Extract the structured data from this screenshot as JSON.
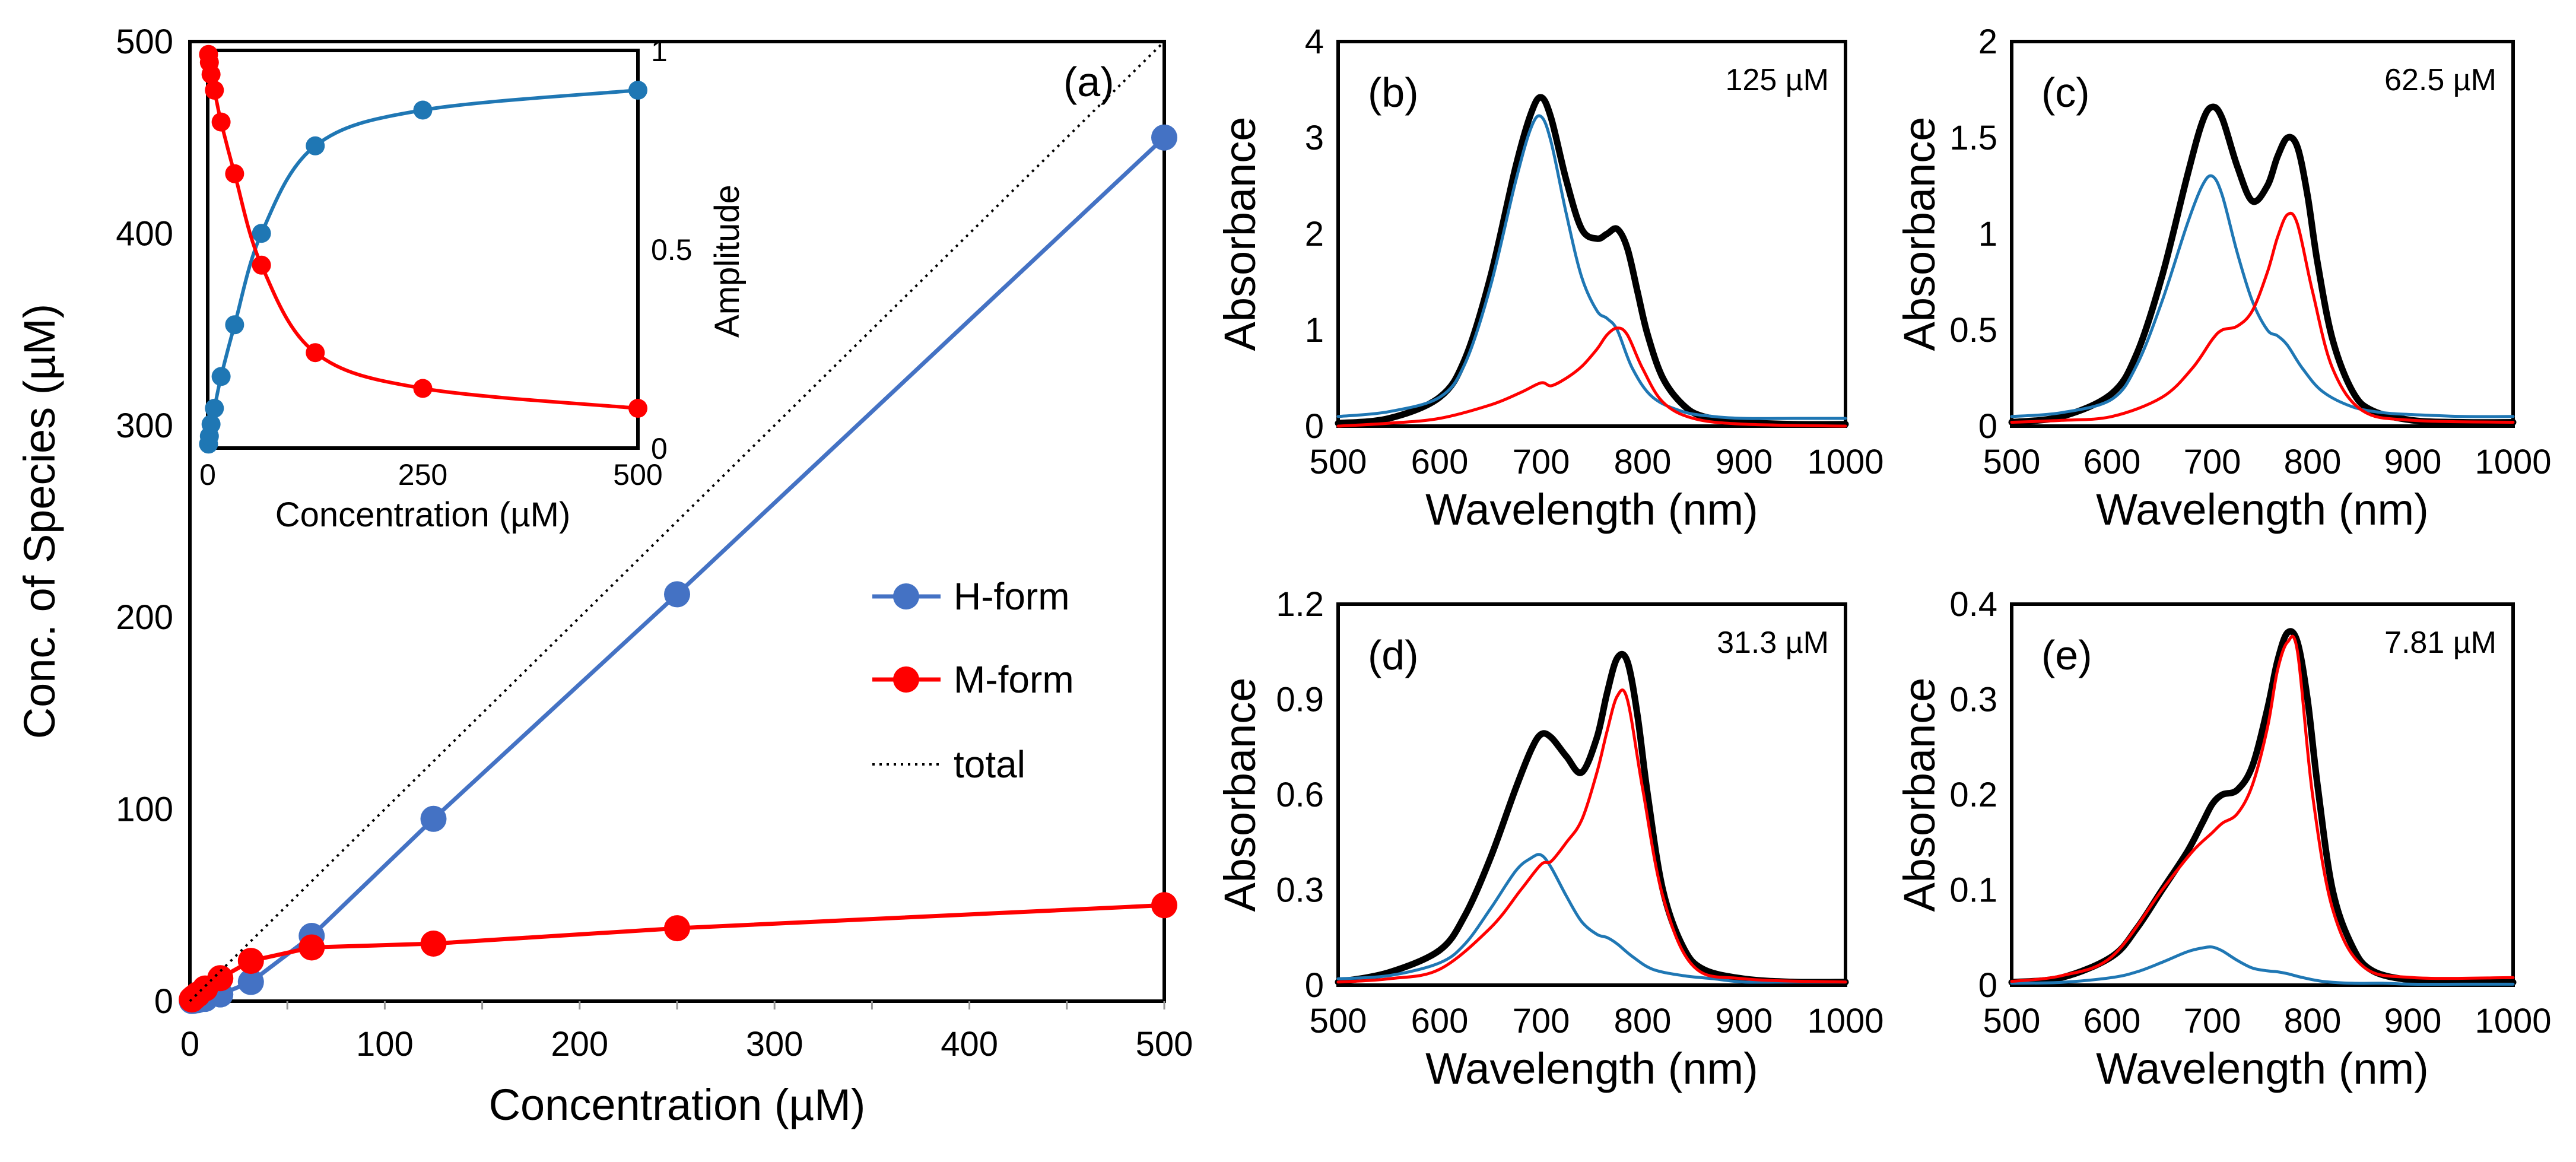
{
  "chart_data": [
    {
      "id": "a",
      "type": "line",
      "panel_label": "(a)",
      "xlabel": "Concentration (µM)",
      "ylabel": "Conc. of Species (µM)",
      "xlim": [
        0,
        500
      ],
      "ylim": [
        0,
        500
      ],
      "xticks": [
        "0",
        "100",
        "200",
        "300",
        "400",
        "500"
      ],
      "yticks": [
        "0",
        "100",
        "200",
        "300",
        "400",
        "500"
      ],
      "legend_position": "center-right",
      "series": [
        {
          "name": "H-form",
          "color": "#4472c4",
          "style": "line-marker",
          "x": [
            0.98,
            1.95,
            3.9,
            7.81,
            15.6,
            31.3,
            62.5,
            125,
            250,
            500
          ],
          "y": [
            0.1,
            0.2,
            0.5,
            1.2,
            3.5,
            10,
            34,
            95,
            212,
            450
          ]
        },
        {
          "name": "M-form",
          "color": "#ff0000",
          "style": "line-marker",
          "x": [
            0.98,
            1.95,
            3.9,
            7.81,
            15.6,
            31.3,
            62.5,
            125,
            250,
            500
          ],
          "y": [
            0.9,
            1.8,
            3.4,
            6.6,
            12,
            21,
            28,
            30,
            38,
            50
          ]
        },
        {
          "name": "total",
          "color": "#000000",
          "style": "dotted",
          "x": [
            0,
            500
          ],
          "y": [
            0,
            500
          ]
        }
      ],
      "inset": {
        "xlabel": "Concentration (µM)",
        "ylabel": "Amplitude",
        "xlim": [
          0,
          500
        ],
        "ylim": [
          0,
          1
        ],
        "xticks": [
          "0",
          "250",
          "500"
        ],
        "yticks": [
          "0",
          "0.5",
          "1"
        ],
        "series": [
          {
            "name": "H-form",
            "color": "#1f77b4",
            "x": [
              0.98,
              1.95,
              3.9,
              7.81,
              15.6,
              31.3,
              62.5,
              125,
              250,
              500
            ],
            "y": [
              0.01,
              0.03,
              0.06,
              0.1,
              0.18,
              0.31,
              0.54,
              0.76,
              0.85,
              0.9
            ]
          },
          {
            "name": "M-form",
            "color": "#ff0000",
            "x": [
              0.98,
              1.95,
              3.9,
              7.81,
              15.6,
              31.3,
              62.5,
              125,
              250,
              500
            ],
            "y": [
              0.99,
              0.97,
              0.94,
              0.9,
              0.82,
              0.69,
              0.46,
              0.24,
              0.15,
              0.1
            ]
          }
        ]
      }
    },
    {
      "id": "b",
      "type": "line",
      "panel_label": "(b)",
      "concentration": "125 µM",
      "xlabel": "Wavelength (nm)",
      "ylabel": "Absorbance",
      "xlim": [
        500,
        1000
      ],
      "ylim": [
        0,
        4
      ],
      "xticks": [
        "500",
        "600",
        "700",
        "800",
        "900",
        "1000"
      ],
      "yticks": [
        "0",
        "1",
        "2",
        "3",
        "4"
      ],
      "series": [
        {
          "name": "total",
          "color": "#000000",
          "x": [
            500,
            550,
            600,
            625,
            650,
            675,
            690,
            700,
            710,
            725,
            740,
            755,
            765,
            775,
            785,
            795,
            805,
            820,
            840,
            860,
            900,
            950,
            1000
          ],
          "y": [
            0.03,
            0.08,
            0.3,
            0.7,
            1.55,
            2.7,
            3.25,
            3.42,
            3.2,
            2.55,
            2.05,
            1.95,
            2.0,
            2.05,
            1.85,
            1.4,
            0.95,
            0.5,
            0.22,
            0.1,
            0.04,
            0.02,
            0.02
          ]
        },
        {
          "name": "H-form",
          "color": "#1f77b4",
          "x": [
            500,
            550,
            600,
            625,
            650,
            675,
            690,
            700,
            710,
            725,
            740,
            755,
            765,
            775,
            790,
            810,
            840,
            870,
            900,
            950,
            1000
          ],
          "y": [
            0.1,
            0.15,
            0.3,
            0.65,
            1.45,
            2.55,
            3.1,
            3.22,
            2.95,
            2.2,
            1.55,
            1.2,
            1.12,
            1.0,
            0.6,
            0.3,
            0.15,
            0.1,
            0.08,
            0.08,
            0.08
          ]
        },
        {
          "name": "M-form",
          "color": "#ff0000",
          "x": [
            500,
            550,
            600,
            650,
            680,
            700,
            710,
            725,
            740,
            755,
            765,
            775,
            785,
            800,
            820,
            850,
            900,
            1000
          ],
          "y": [
            0,
            0.03,
            0.08,
            0.22,
            0.35,
            0.45,
            0.42,
            0.5,
            0.62,
            0.8,
            0.95,
            1.02,
            0.95,
            0.6,
            0.25,
            0.08,
            0.02,
            0.0
          ]
        }
      ]
    },
    {
      "id": "c",
      "type": "line",
      "panel_label": "(c)",
      "concentration": "62.5 µM",
      "xlabel": "Wavelength (nm)",
      "ylabel": "Absorbance",
      "xlim": [
        500,
        1000
      ],
      "ylim": [
        0,
        2
      ],
      "xticks": [
        "500",
        "600",
        "700",
        "800",
        "900",
        "1000"
      ],
      "yticks": [
        "0",
        "0.5",
        "1",
        "1.5",
        "2"
      ],
      "series": [
        {
          "name": "total",
          "color": "#000000",
          "x": [
            500,
            550,
            600,
            625,
            650,
            675,
            690,
            700,
            710,
            725,
            740,
            755,
            765,
            775,
            785,
            795,
            805,
            820,
            840,
            860,
            900,
            950,
            1000
          ],
          "y": [
            0.02,
            0.05,
            0.17,
            0.38,
            0.78,
            1.3,
            1.58,
            1.66,
            1.6,
            1.35,
            1.17,
            1.25,
            1.4,
            1.5,
            1.45,
            1.2,
            0.85,
            0.45,
            0.18,
            0.08,
            0.03,
            0.02,
            0.02
          ]
        },
        {
          "name": "H-form",
          "color": "#1f77b4",
          "x": [
            500,
            550,
            600,
            625,
            650,
            675,
            690,
            700,
            710,
            725,
            740,
            755,
            765,
            775,
            790,
            810,
            840,
            870,
            900,
            950,
            1000
          ],
          "y": [
            0.05,
            0.07,
            0.14,
            0.32,
            0.65,
            1.05,
            1.25,
            1.3,
            1.2,
            0.9,
            0.65,
            0.5,
            0.47,
            0.42,
            0.3,
            0.18,
            0.1,
            0.07,
            0.06,
            0.05,
            0.05
          ]
        },
        {
          "name": "M-form",
          "color": "#ff0000",
          "x": [
            500,
            550,
            600,
            650,
            680,
            700,
            710,
            725,
            740,
            755,
            765,
            775,
            785,
            800,
            820,
            850,
            900,
            1000
          ],
          "y": [
            0.02,
            0.03,
            0.05,
            0.15,
            0.3,
            0.45,
            0.5,
            0.52,
            0.6,
            0.8,
            0.98,
            1.1,
            1.05,
            0.7,
            0.3,
            0.08,
            0.03,
            0.02
          ]
        }
      ]
    },
    {
      "id": "d",
      "type": "line",
      "panel_label": "(d)",
      "concentration": "31.3 µM",
      "xlabel": "Wavelength (nm)",
      "ylabel": "Absorbance",
      "xlim": [
        500,
        1000
      ],
      "ylim": [
        0,
        1.2
      ],
      "xticks": [
        "500",
        "600",
        "700",
        "800",
        "900",
        "1000"
      ],
      "yticks": [
        "0",
        "0.3",
        "0.6",
        "0.9",
        "1.2"
      ],
      "series": [
        {
          "name": "total",
          "color": "#000000",
          "x": [
            500,
            550,
            600,
            625,
            650,
            675,
            690,
            700,
            710,
            725,
            740,
            755,
            765,
            775,
            785,
            795,
            805,
            820,
            840,
            860,
            900,
            950,
            1000
          ],
          "y": [
            0.01,
            0.04,
            0.11,
            0.22,
            0.4,
            0.62,
            0.74,
            0.79,
            0.78,
            0.72,
            0.67,
            0.78,
            0.92,
            1.03,
            1.02,
            0.85,
            0.6,
            0.3,
            0.12,
            0.05,
            0.02,
            0.01,
            0.01
          ]
        },
        {
          "name": "H-form",
          "color": "#1f77b4",
          "x": [
            500,
            550,
            600,
            625,
            650,
            675,
            690,
            700,
            710,
            725,
            740,
            755,
            765,
            775,
            790,
            810,
            840,
            870,
            900,
            950,
            1000
          ],
          "y": [
            0.02,
            0.03,
            0.07,
            0.13,
            0.24,
            0.36,
            0.4,
            0.41,
            0.37,
            0.28,
            0.2,
            0.16,
            0.15,
            0.13,
            0.09,
            0.05,
            0.03,
            0.02,
            0.01,
            0.01,
            0.01
          ]
        },
        {
          "name": "M-form",
          "color": "#ff0000",
          "x": [
            500,
            550,
            600,
            650,
            680,
            700,
            710,
            725,
            740,
            755,
            765,
            775,
            785,
            800,
            820,
            850,
            900,
            1000
          ],
          "y": [
            0.01,
            0.02,
            0.05,
            0.18,
            0.3,
            0.38,
            0.39,
            0.45,
            0.52,
            0.67,
            0.8,
            0.91,
            0.9,
            0.62,
            0.28,
            0.06,
            0.02,
            0.01
          ]
        }
      ]
    },
    {
      "id": "e",
      "type": "line",
      "panel_label": "(e)",
      "concentration": "7.81 µM",
      "xlabel": "Wavelength (nm)",
      "ylabel": "Absorbance",
      "xlim": [
        500,
        1000
      ],
      "ylim": [
        0,
        0.4
      ],
      "xticks": [
        "500",
        "600",
        "700",
        "800",
        "900",
        "1000"
      ],
      "yticks": [
        "0",
        "0.1",
        "0.2",
        "0.3",
        "0.4"
      ],
      "series": [
        {
          "name": "total",
          "color": "#000000",
          "x": [
            500,
            550,
            600,
            625,
            650,
            675,
            690,
            700,
            710,
            725,
            740,
            755,
            765,
            775,
            785,
            795,
            805,
            820,
            840,
            860,
            900,
            950,
            1000
          ],
          "y": [
            0.003,
            0.008,
            0.03,
            0.06,
            0.1,
            0.14,
            0.17,
            0.19,
            0.2,
            0.205,
            0.23,
            0.29,
            0.34,
            0.37,
            0.36,
            0.3,
            0.21,
            0.1,
            0.04,
            0.015,
            0.005,
            0.003,
            0.003
          ]
        },
        {
          "name": "H-form",
          "color": "#1f77b4",
          "x": [
            500,
            550,
            600,
            625,
            650,
            675,
            690,
            700,
            710,
            725,
            740,
            755,
            765,
            775,
            790,
            810,
            840,
            870,
            900,
            950,
            1000
          ],
          "y": [
            0.002,
            0.003,
            0.008,
            0.014,
            0.024,
            0.035,
            0.039,
            0.04,
            0.036,
            0.026,
            0.018,
            0.015,
            0.014,
            0.012,
            0.008,
            0.004,
            0.002,
            0.002,
            0.001,
            0.001,
            0.001
          ]
        },
        {
          "name": "M-form",
          "color": "#ff0000",
          "x": [
            500,
            550,
            600,
            650,
            680,
            700,
            710,
            725,
            740,
            755,
            765,
            775,
            785,
            800,
            820,
            850,
            900,
            1000
          ],
          "y": [
            0.004,
            0.01,
            0.03,
            0.1,
            0.14,
            0.16,
            0.17,
            0.18,
            0.21,
            0.27,
            0.33,
            0.36,
            0.35,
            0.2,
            0.08,
            0.02,
            0.008,
            0.008
          ]
        }
      ]
    }
  ]
}
